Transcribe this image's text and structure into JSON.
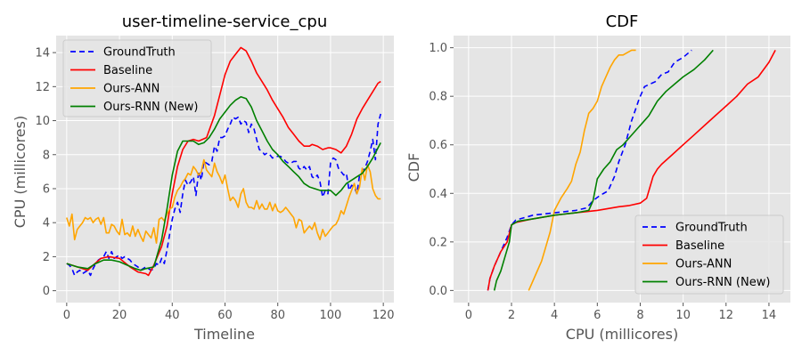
{
  "chart_data": [
    {
      "type": "line",
      "title": "user-timeline-service_cpu",
      "xlabel": "Timeline",
      "ylabel": "CPU (millicores)",
      "xlim": [
        -4,
        124
      ],
      "ylim": [
        -0.7,
        15
      ],
      "xticks": [
        0,
        20,
        40,
        60,
        80,
        100,
        120
      ],
      "yticks": [
        0,
        2,
        4,
        6,
        8,
        10,
        12,
        14
      ],
      "grid": true,
      "legend": "top-left",
      "series": [
        {
          "name": "GroundTruth",
          "color": "#0000ff",
          "dash": "6,4",
          "x": [
            0,
            1,
            2,
            3,
            4,
            5,
            6,
            7,
            8,
            9,
            10,
            11,
            12,
            13,
            14,
            15,
            16,
            17,
            18,
            19,
            20,
            21,
            22,
            23,
            24,
            25,
            26,
            27,
            28,
            29,
            30,
            31,
            32,
            33,
            34,
            35,
            36,
            37,
            38,
            39,
            40,
            41,
            42,
            43,
            44,
            45,
            46,
            47,
            48,
            49,
            50,
            51,
            52,
            53,
            54,
            55,
            56,
            57,
            58,
            59,
            60,
            61,
            62,
            63,
            64,
            65,
            66,
            67,
            68,
            69,
            70,
            71,
            72,
            73,
            74,
            75,
            76,
            77,
            78,
            79,
            80,
            81,
            82,
            83,
            84,
            85,
            86,
            87,
            88,
            89,
            90,
            91,
            92,
            93,
            94,
            95,
            96,
            97,
            98,
            99,
            100,
            101,
            102,
            103,
            104,
            105,
            106,
            107,
            108,
            109,
            110,
            111,
            112,
            113,
            114,
            115,
            116,
            117,
            118,
            119
          ],
          "y": [
            1.6,
            1.5,
            1.3,
            0.9,
            1.1,
            1.2,
            1.0,
            1.1,
            1.2,
            0.9,
            1.3,
            1.6,
            1.8,
            1.9,
            2.0,
            2.3,
            1.9,
            2.3,
            1.9,
            2.0,
            2.1,
            1.9,
            2.0,
            1.9,
            1.8,
            1.6,
            1.5,
            1.4,
            1.2,
            1.3,
            1.4,
            1.3,
            1.2,
            1.3,
            1.6,
            1.5,
            1.9,
            1.6,
            2.4,
            3.3,
            4.2,
            4.8,
            5.2,
            4.6,
            5.7,
            6.5,
            6.2,
            6.4,
            6.7,
            5.6,
            7.0,
            6.5,
            7.6,
            7.5,
            7.4,
            7.6,
            8.5,
            8.2,
            9.0,
            9.0,
            9.1,
            9.5,
            9.8,
            10.2,
            10.1,
            10.2,
            9.8,
            10.0,
            9.9,
            9.3,
            9.8,
            9.5,
            8.9,
            8.3,
            8.2,
            8.0,
            8.1,
            8.0,
            7.8,
            7.9,
            7.9,
            7.9,
            7.8,
            7.6,
            7.5,
            7.5,
            7.6,
            7.6,
            7.2,
            7.1,
            7.3,
            7.1,
            7.3,
            6.7,
            6.6,
            6.8,
            6.4,
            5.5,
            5.9,
            5.7,
            7.5,
            7.8,
            7.7,
            7.2,
            7.0,
            6.8,
            6.9,
            5.9,
            6.2,
            6.1,
            5.7,
            6.8,
            7.0,
            7.2,
            7.6,
            8.2,
            8.9,
            7.7,
            9.8,
            10.4
          ]
        },
        {
          "name": "Baseline",
          "color": "#ff0000",
          "dash": "",
          "x": [
            0,
            4,
            8,
            10,
            13,
            16,
            20,
            24,
            27,
            30,
            31,
            33,
            36,
            38,
            40,
            42,
            44,
            46,
            48,
            50,
            53,
            56,
            58,
            60,
            62,
            64,
            66,
            67,
            68,
            70,
            72,
            74,
            76,
            78,
            80,
            82,
            84,
            86,
            88,
            90,
            92,
            93,
            95,
            97,
            99,
            100,
            102,
            104,
            106,
            108,
            110,
            112,
            114,
            116,
            118,
            119
          ],
          "y": [
            1.6,
            1.4,
            1.2,
            1.5,
            1.9,
            2.0,
            1.9,
            1.4,
            1.1,
            1.0,
            0.9,
            1.5,
            2.6,
            3.8,
            5.7,
            7.3,
            8.3,
            8.8,
            8.9,
            8.8,
            9.0,
            10.3,
            11.5,
            12.7,
            13.5,
            13.9,
            14.3,
            14.2,
            14.1,
            13.5,
            12.8,
            12.3,
            11.8,
            11.2,
            10.7,
            10.2,
            9.6,
            9.2,
            8.8,
            8.5,
            8.5,
            8.6,
            8.5,
            8.3,
            8.4,
            8.4,
            8.3,
            8.1,
            8.5,
            9.2,
            10.1,
            10.7,
            11.2,
            11.7,
            12.2,
            12.3
          ]
        },
        {
          "name": "Ours-ANN",
          "color": "#ffa500",
          "dash": "",
          "x": [
            0,
            1,
            2,
            3,
            4,
            5,
            6,
            7,
            8,
            9,
            10,
            11,
            12,
            13,
            14,
            15,
            16,
            17,
            18,
            19,
            20,
            21,
            22,
            23,
            24,
            25,
            26,
            27,
            28,
            29,
            30,
            31,
            32,
            33,
            34,
            35,
            36,
            37,
            38,
            39,
            40,
            41,
            42,
            43,
            44,
            45,
            46,
            47,
            48,
            49,
            50,
            51,
            52,
            53,
            54,
            55,
            56,
            57,
            58,
            59,
            60,
            61,
            62,
            63,
            64,
            65,
            66,
            67,
            68,
            69,
            70,
            71,
            72,
            73,
            74,
            75,
            76,
            77,
            78,
            79,
            80,
            81,
            82,
            83,
            84,
            85,
            86,
            87,
            88,
            89,
            90,
            91,
            92,
            93,
            94,
            95,
            96,
            97,
            98,
            99,
            100,
            101,
            102,
            103,
            104,
            105,
            106,
            107,
            108,
            109,
            110,
            111,
            112,
            113,
            114,
            115,
            116,
            117,
            118,
            119
          ],
          "y": [
            4.3,
            3.8,
            4.5,
            3.0,
            3.6,
            3.8,
            4.0,
            4.3,
            4.2,
            4.3,
            4.0,
            4.2,
            4.3,
            3.9,
            4.3,
            3.4,
            3.4,
            3.9,
            3.8,
            3.5,
            3.3,
            4.2,
            3.3,
            3.4,
            3.2,
            3.8,
            3.2,
            3.6,
            3.2,
            2.9,
            3.5,
            3.3,
            3.1,
            3.7,
            2.8,
            4.2,
            4.3,
            4.1,
            4.5,
            4.8,
            4.9,
            5.5,
            5.9,
            6.1,
            6.4,
            6.6,
            6.9,
            6.8,
            7.3,
            7.1,
            6.8,
            7.0,
            7.7,
            7.1,
            6.9,
            6.7,
            7.5,
            7.0,
            6.7,
            6.3,
            6.8,
            6.0,
            5.3,
            5.5,
            5.3,
            4.9,
            5.7,
            6.0,
            5.2,
            4.9,
            4.9,
            4.8,
            5.3,
            4.8,
            5.1,
            4.8,
            4.8,
            5.2,
            4.7,
            5.1,
            4.7,
            4.6,
            4.7,
            4.9,
            4.7,
            4.5,
            4.3,
            3.7,
            4.2,
            4.1,
            3.4,
            3.6,
            3.8,
            3.6,
            4.0,
            3.4,
            3.0,
            3.6,
            3.2,
            3.4,
            3.6,
            3.8,
            3.9,
            4.2,
            4.7,
            4.5,
            5.0,
            5.5,
            5.9,
            6.3,
            5.7,
            6.1,
            7.2,
            6.5,
            7.4,
            7.0,
            6.0,
            5.6,
            5.4,
            5.4
          ]
        },
        {
          "name": "Ours-RNN (New)",
          "color": "#008000",
          "dash": "",
          "x": [
            0,
            4,
            8,
            11,
            14,
            17,
            20,
            23,
            26,
            28,
            30,
            33,
            36,
            38,
            40,
            42,
            44,
            46,
            48,
            50,
            52,
            54,
            56,
            58,
            60,
            62,
            64,
            66,
            68,
            70,
            72,
            74,
            76,
            78,
            80,
            82,
            84,
            86,
            88,
            90,
            92,
            94,
            96,
            98,
            100,
            102,
            104,
            106,
            108,
            110,
            112,
            114,
            116,
            118,
            119
          ],
          "y": [
            1.6,
            1.4,
            1.3,
            1.6,
            1.8,
            1.8,
            1.7,
            1.5,
            1.3,
            1.2,
            1.3,
            1.4,
            3.0,
            4.8,
            6.8,
            8.2,
            8.8,
            8.8,
            8.8,
            8.6,
            8.7,
            9.0,
            9.5,
            10.1,
            10.5,
            10.9,
            11.2,
            11.4,
            11.3,
            10.8,
            10.0,
            9.4,
            8.8,
            8.3,
            8.0,
            7.6,
            7.3,
            7.0,
            6.7,
            6.3,
            6.1,
            6.0,
            5.9,
            5.9,
            5.9,
            5.6,
            5.9,
            6.3,
            6.5,
            6.7,
            6.9,
            7.3,
            7.8,
            8.4,
            8.7
          ]
        }
      ]
    },
    {
      "type": "line",
      "title": "CDF",
      "xlabel": "CPU (millicores)",
      "ylabel": "CDF",
      "xlim": [
        -0.7,
        15
      ],
      "ylim": [
        -0.05,
        1.05
      ],
      "xticks": [
        0,
        2,
        4,
        6,
        8,
        10,
        12,
        14
      ],
      "yticks": [
        0.0,
        0.2,
        0.4,
        0.6,
        0.8,
        1.0
      ],
      "yticklabels": [
        "0.0",
        "0.2",
        "0.4",
        "0.6",
        "0.8",
        "1.0"
      ],
      "grid": true,
      "legend": "bottom-right",
      "series": [
        {
          "name": "GroundTruth",
          "color": "#0000ff",
          "dash": "6,4",
          "x": [
            0.9,
            1.0,
            1.2,
            1.5,
            1.8,
            2.0,
            2.2,
            3.0,
            4.0,
            5.0,
            5.5,
            5.8,
            6.1,
            6.5,
            6.8,
            7.0,
            7.3,
            7.6,
            7.8,
            7.95,
            8.2,
            8.7,
            9.0,
            9.3,
            9.6,
            10.0,
            10.4
          ],
          "y": [
            0.0,
            0.05,
            0.1,
            0.16,
            0.22,
            0.27,
            0.29,
            0.31,
            0.32,
            0.33,
            0.34,
            0.37,
            0.39,
            0.41,
            0.47,
            0.53,
            0.6,
            0.7,
            0.75,
            0.79,
            0.84,
            0.86,
            0.89,
            0.9,
            0.94,
            0.96,
            0.99
          ]
        },
        {
          "name": "Baseline",
          "color": "#ff0000",
          "dash": "",
          "x": [
            0.9,
            1.0,
            1.2,
            1.5,
            1.8,
            2.0,
            2.2,
            3.0,
            4.0,
            5.0,
            6.0,
            7.0,
            7.5,
            8.0,
            8.3,
            8.5,
            8.6,
            8.8,
            9.0,
            9.5,
            10.0,
            10.5,
            11.0,
            11.5,
            12.0,
            12.5,
            13.0,
            13.5,
            14.0,
            14.3
          ],
          "y": [
            0.0,
            0.05,
            0.1,
            0.16,
            0.2,
            0.27,
            0.28,
            0.295,
            0.31,
            0.32,
            0.33,
            0.345,
            0.35,
            0.36,
            0.38,
            0.44,
            0.47,
            0.5,
            0.52,
            0.56,
            0.6,
            0.64,
            0.68,
            0.72,
            0.76,
            0.8,
            0.85,
            0.88,
            0.94,
            0.99
          ]
        },
        {
          "name": "Ours-ANN",
          "color": "#ffa500",
          "dash": "",
          "x": [
            2.8,
            3.0,
            3.2,
            3.4,
            3.6,
            3.8,
            4.0,
            4.3,
            4.6,
            4.8,
            5.0,
            5.2,
            5.4,
            5.6,
            5.8,
            6.0,
            6.2,
            6.4,
            6.6,
            6.8,
            7.0,
            7.2,
            7.4,
            7.6,
            7.8
          ],
          "y": [
            0.0,
            0.04,
            0.08,
            0.12,
            0.18,
            0.24,
            0.33,
            0.38,
            0.42,
            0.45,
            0.52,
            0.57,
            0.66,
            0.73,
            0.75,
            0.78,
            0.84,
            0.88,
            0.92,
            0.95,
            0.97,
            0.97,
            0.98,
            0.99,
            0.99
          ]
        },
        {
          "name": "Ours-RNN (New)",
          "color": "#008000",
          "dash": "",
          "x": [
            1.2,
            1.3,
            1.5,
            1.7,
            1.9,
            2.0,
            2.3,
            3.0,
            4.0,
            5.0,
            5.6,
            5.8,
            6.0,
            6.3,
            6.6,
            6.9,
            7.2,
            7.5,
            7.8,
            8.1,
            8.4,
            8.6,
            8.8,
            9.2,
            9.6,
            10.0,
            10.5,
            11.0,
            11.4
          ],
          "y": [
            0.0,
            0.04,
            0.08,
            0.14,
            0.2,
            0.27,
            0.285,
            0.295,
            0.31,
            0.32,
            0.33,
            0.37,
            0.46,
            0.5,
            0.53,
            0.58,
            0.6,
            0.63,
            0.66,
            0.69,
            0.72,
            0.75,
            0.78,
            0.82,
            0.85,
            0.88,
            0.91,
            0.95,
            0.99
          ]
        }
      ]
    }
  ]
}
